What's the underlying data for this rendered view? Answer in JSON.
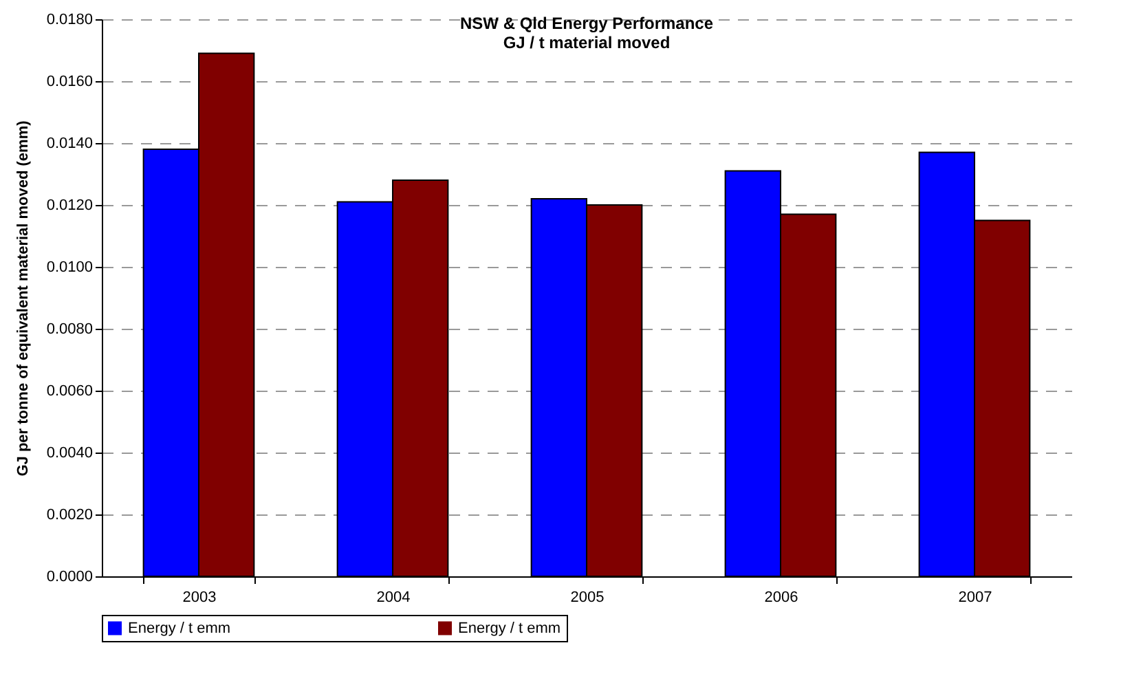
{
  "chart_data": {
    "type": "bar",
    "title": "NSW & Qld Energy Performance",
    "subtitle": "GJ / t material moved",
    "ylabel": "GJ per tonne of equivalent material moved (emm)",
    "categories": [
      "2003",
      "2004",
      "2005",
      "2006",
      "2007"
    ],
    "series": [
      {
        "name": "Energy / t emm",
        "color": "#0000ff",
        "values": [
          0.0138,
          0.0121,
          0.0122,
          0.0131,
          0.0137
        ]
      },
      {
        "name": "Energy / t emm",
        "color": "#800000",
        "values": [
          0.0169,
          0.0128,
          0.012,
          0.0117,
          0.0115
        ]
      }
    ],
    "ylim": [
      0,
      0.018
    ],
    "yticks": [
      {
        "value": 0,
        "label": "0.0000"
      },
      {
        "value": 0.002,
        "label": "0.0020"
      },
      {
        "value": 0.004,
        "label": "0.0040"
      },
      {
        "value": 0.006,
        "label": "0.0060"
      },
      {
        "value": 0.008,
        "label": "0.0080"
      },
      {
        "value": 0.01,
        "label": "0.0100"
      },
      {
        "value": 0.012,
        "label": "0.0120"
      },
      {
        "value": 0.014,
        "label": "0.0140"
      },
      {
        "value": 0.016,
        "label": "0.0160"
      },
      {
        "value": 0.018,
        "label": "0.0180"
      }
    ],
    "grid": "y",
    "legend": "bottom"
  }
}
